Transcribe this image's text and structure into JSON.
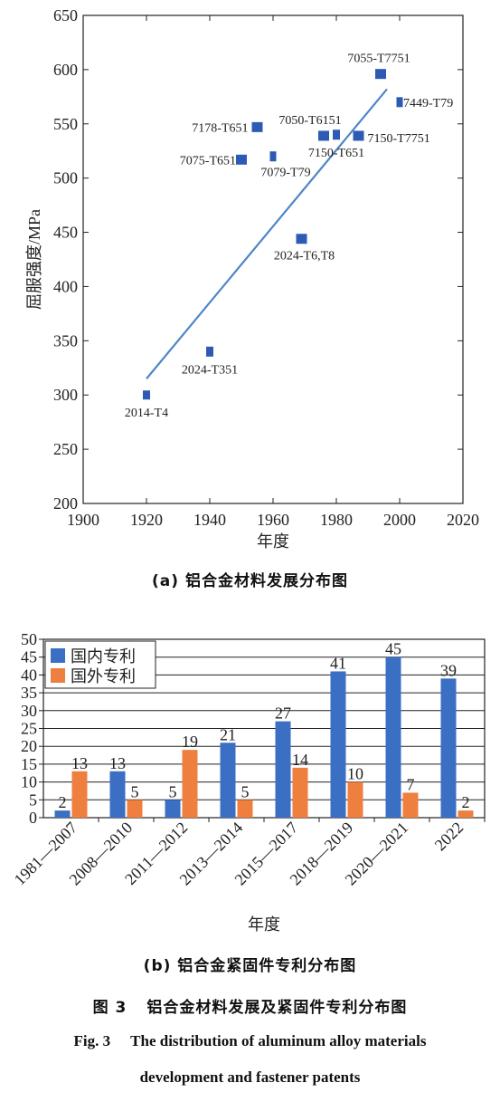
{
  "chart_data": [
    {
      "type": "scatter",
      "xlabel": "年度",
      "ylabel": "屈服强度/MPa",
      "xlim": [
        1900,
        2020
      ],
      "ylim": [
        200,
        650
      ],
      "x_ticks": [
        1900,
        1920,
        1940,
        1960,
        1980,
        2000,
        2020
      ],
      "y_ticks": [
        200,
        250,
        300,
        350,
        400,
        450,
        500,
        550,
        600,
        650
      ],
      "color": "#2d5bb3",
      "points": [
        {
          "label": "2014-T4",
          "x": 1920,
          "y": 300
        },
        {
          "label": "2024-T351",
          "x": 1940,
          "y": 340
        },
        {
          "label": "7075-T651",
          "x": 1950,
          "y": 517
        },
        {
          "label": "7178-T651",
          "x": 1955,
          "y": 547
        },
        {
          "label": "7079-T79",
          "x": 1960,
          "y": 520
        },
        {
          "label": "2024-T6,T8",
          "x": 1969,
          "y": 444
        },
        {
          "label": "7050-T6151",
          "x": 1976,
          "y": 539
        },
        {
          "label": "7150-T651",
          "x": 1980,
          "y": 540
        },
        {
          "label": "7150-T7751",
          "x": 1987,
          "y": 539
        },
        {
          "label": "7055-T7751",
          "x": 1994,
          "y": 596
        },
        {
          "label": "7449-T79",
          "x": 2000,
          "y": 570
        }
      ],
      "trendline": {
        "x": [
          1920,
          1996
        ],
        "y": [
          315,
          582
        ],
        "color": "#4f86c6"
      }
    },
    {
      "type": "bar",
      "xlabel": "年度",
      "ylim": [
        0,
        50
      ],
      "y_ticks": [
        0,
        5,
        10,
        15,
        20,
        25,
        30,
        35,
        40,
        45,
        50
      ],
      "legend_position": "top-left",
      "grid": true,
      "categories": [
        "1981—2007",
        "2008—2010",
        "2011—2012",
        "2013—2014",
        "2015—2017",
        "2018—2019",
        "2020—2021",
        "2022"
      ],
      "series": [
        {
          "name": "国内专利",
          "color": "#3a6fc4",
          "values": [
            2,
            13,
            5,
            21,
            27,
            41,
            45,
            39
          ]
        },
        {
          "name": "国外专利",
          "color": "#ef7f3f",
          "values": [
            13,
            5,
            19,
            5,
            14,
            10,
            7,
            2
          ]
        }
      ]
    }
  ],
  "captions": {
    "a": "(a) 铝合金材料发展分布图",
    "b": "(b) 铝合金紧固件专利分布图",
    "figure_zh_num": "图 3",
    "figure_zh_title": "铝合金材料发展及紧固件专利分布图",
    "figure_en_num": "Fig. 3",
    "figure_en_line1": "The distribution of aluminum alloy materials",
    "figure_en_line2": "development and fastener patents"
  }
}
